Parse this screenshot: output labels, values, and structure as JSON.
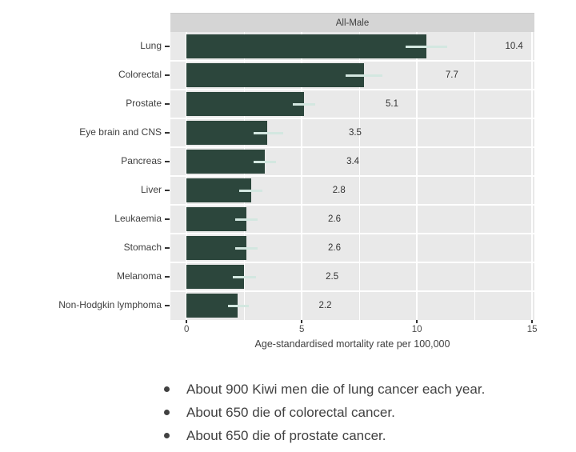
{
  "chart_data": {
    "type": "bar",
    "orientation": "horizontal",
    "facet_label": "All-Male",
    "title": "",
    "categories": [
      "Lung",
      "Colorectal",
      "Prostate",
      "Eye brain and  CNS",
      "Pancreas",
      "Liver",
      "Leukaemia",
      "Stomach",
      "Melanoma",
      "Non-Hodgkin lymphoma"
    ],
    "values": [
      10.4,
      7.7,
      5.1,
      3.5,
      3.4,
      2.8,
      2.6,
      2.6,
      2.5,
      2.2
    ],
    "value_labels": [
      "10.4",
      "7.7",
      "5.1",
      "3.5",
      "3.4",
      "2.8",
      "2.6",
      "2.6",
      "2.5",
      "2.2"
    ],
    "error_low": [
      9.5,
      6.9,
      4.6,
      2.9,
      2.9,
      2.3,
      2.1,
      2.1,
      2.0,
      1.8
    ],
    "error_high": [
      11.3,
      8.5,
      5.6,
      4.2,
      3.9,
      3.3,
      3.1,
      3.1,
      3.0,
      2.7
    ],
    "xlabel": "Age-standardised mortality rate per 100,000",
    "ylabel": "",
    "x_tick_labels": [
      "0",
      "5",
      "10",
      "15"
    ],
    "x_tick_values": [
      0,
      5,
      10,
      15
    ],
    "x_minor_tick_values": [
      2.5,
      7.5,
      12.5
    ],
    "xlim": [
      -0.7,
      15.1
    ],
    "grid": true,
    "legend": "none",
    "colors": {
      "bar": "#2c463c",
      "error_bar": "#d3e7e0",
      "panel_bg": "#e9e9e9",
      "strip_bg": "#d5d5d5",
      "gridline": "#ffffff",
      "tick": "#333333",
      "label_text": "#404040"
    }
  },
  "notes": {
    "items": [
      "About 900 Kiwi men die of lung cancer each year.",
      "About 650 die of colorectal cancer.",
      "About 650 die of prostate cancer."
    ]
  }
}
